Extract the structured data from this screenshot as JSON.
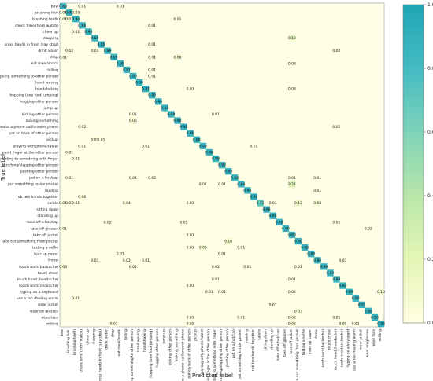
{
  "chart_data": {
    "type": "heatmap",
    "title": "",
    "xlabel": "Predicted label",
    "ylabel": "True label",
    "labels": [
      "bow",
      "brushing hair",
      "brushing teeth",
      "check time (from watch)",
      "cheer up",
      "clapping",
      "cross hands in front (say stop)",
      "drink water",
      "drop",
      "eat meal/snack",
      "falling",
      "giving something to other person",
      "hand waving",
      "handshaking",
      "hopping (one foot jumping)",
      "hugging other person",
      "jump up",
      "kicking other person",
      "kicking something",
      "make a phone call/answer phone",
      "pat on back of other person",
      "pickup",
      "playing with phone/tablet",
      "point finger at the other person",
      "pointing to something with finger",
      "punching/slapping other person",
      "pushing other person",
      "put on a hat/cap",
      "put something inside pocket",
      "reading",
      "rub two hands together",
      "salute",
      "sitting down",
      "standing up",
      "take off a hat/cap",
      "take off glasses",
      "take off jacket",
      "take out something from pocket",
      "tasting a selfie",
      "tear up paper",
      "throw",
      "touch back(backache)",
      "touch chest",
      "touch head (headache)",
      "touch neck(neckache)",
      "typing on a keyboard",
      "use a fan /feeling warm",
      "wear jacket",
      "wear on glasses",
      "wipe face",
      "writing"
    ],
    "cells": [
      [
        0,
        0,
        0.83
      ],
      [
        0,
        3,
        0.01
      ],
      [
        0,
        9,
        0.01
      ],
      [
        1,
        0,
        0.01
      ],
      [
        1,
        1,
        0.9
      ],
      [
        1,
        2,
        0.03
      ],
      [
        2,
        0,
        0.01
      ],
      [
        2,
        1,
        0.03
      ],
      [
        2,
        2,
        0.9
      ],
      [
        3,
        3,
        0.88
      ],
      [
        4,
        4,
        0.9
      ],
      [
        5,
        5,
        0.89
      ],
      [
        6,
        6,
        0.9
      ],
      [
        7,
        7,
        0.89
      ],
      [
        8,
        8,
        0.89
      ],
      [
        9,
        9,
        0.9
      ],
      [
        10,
        10,
        0.87
      ],
      [
        11,
        11,
        0.9
      ],
      [
        12,
        12,
        0.9
      ],
      [
        13,
        13,
        0.91
      ],
      [
        14,
        14,
        0.9
      ],
      [
        15,
        15,
        0.9
      ],
      [
        16,
        16,
        0.88
      ],
      [
        17,
        17,
        0.89
      ],
      [
        18,
        18,
        0.9
      ],
      [
        19,
        19,
        0.88
      ],
      [
        20,
        20,
        0.9
      ],
      [
        21,
        21,
        0.89
      ],
      [
        22,
        22,
        0.9
      ],
      [
        23,
        23,
        0.88
      ],
      [
        24,
        24,
        0.89
      ],
      [
        25,
        25,
        0.9
      ],
      [
        26,
        26,
        0.89
      ],
      [
        27,
        27,
        0.88
      ],
      [
        28,
        28,
        0.89
      ],
      [
        29,
        29,
        0.9
      ],
      [
        30,
        30,
        0.92
      ],
      [
        31,
        31,
        0.71
      ],
      [
        32,
        32,
        0.9
      ],
      [
        33,
        33,
        0.88
      ],
      [
        34,
        34,
        0.89
      ],
      [
        35,
        35,
        0.9
      ],
      [
        36,
        36,
        0.89
      ],
      [
        37,
        37,
        0.9
      ],
      [
        38,
        38,
        0.88
      ],
      [
        39,
        39,
        0.89
      ],
      [
        40,
        40,
        0.9
      ],
      [
        41,
        41,
        0.89
      ],
      [
        42,
        42,
        0.9
      ],
      [
        43,
        43,
        0.88
      ],
      [
        44,
        44,
        0.9
      ],
      [
        45,
        45,
        0.89
      ],
      [
        46,
        46,
        0.9
      ],
      [
        47,
        47,
        0.91
      ],
      [
        48,
        48,
        0.88
      ],
      [
        49,
        49,
        0.9
      ],
      [
        50,
        50,
        0.93
      ],
      [
        50,
        8,
        0.01
      ],
      [
        50,
        20,
        0.02
      ],
      [
        50,
        36,
        0.02
      ],
      [
        50,
        44,
        0.05
      ],
      [
        50,
        46,
        0.01
      ],
      [
        49,
        20,
        0.01
      ],
      [
        49,
        28,
        0.01
      ],
      [
        49,
        36,
        0.02
      ],
      [
        49,
        43,
        0.01
      ],
      [
        48,
        37,
        0.03
      ],
      [
        48,
        48,
        0.88
      ],
      [
        47,
        33,
        0.01
      ],
      [
        46,
        2,
        0.01
      ],
      [
        45,
        23,
        0.01
      ],
      [
        45,
        25,
        0.01
      ],
      [
        45,
        36,
        0.02
      ],
      [
        45,
        50,
        0.1
      ],
      [
        44,
        20,
        0.01
      ],
      [
        43,
        24,
        0.01
      ],
      [
        43,
        36,
        0.01
      ],
      [
        41,
        0,
        0.03
      ],
      [
        41,
        11,
        0.02
      ],
      [
        41,
        24,
        0.02
      ],
      [
        41,
        29,
        0.01
      ],
      [
        41,
        37,
        0.01
      ],
      [
        40,
        5,
        0.01
      ],
      [
        40,
        10,
        0.02
      ],
      [
        40,
        13,
        0.01
      ],
      [
        40,
        44,
        0.01
      ],
      [
        39,
        9,
        0.01
      ],
      [
        39,
        25,
        0.01
      ],
      [
        38,
        20,
        0.01
      ],
      [
        38,
        22,
        0.06
      ],
      [
        38,
        28,
        0.01
      ],
      [
        37,
        26,
        0.1
      ],
      [
        36,
        20,
        0.01
      ],
      [
        35,
        0,
        0.01
      ],
      [
        35,
        48,
        0.02
      ],
      [
        34,
        7,
        0.02
      ],
      [
        34,
        19,
        0.01
      ],
      [
        34,
        43,
        0.01
      ],
      [
        31,
        0,
        0.01
      ],
      [
        31,
        1,
        0.01
      ],
      [
        31,
        2,
        0.01
      ],
      [
        31,
        10,
        0.04
      ],
      [
        31,
        20,
        0.01
      ],
      [
        31,
        33,
        0.01
      ],
      [
        31,
        37,
        0.13
      ],
      [
        31,
        40,
        0.08
      ],
      [
        30,
        3,
        0.06
      ],
      [
        29,
        40,
        0.01
      ],
      [
        28,
        22,
        0.01
      ],
      [
        28,
        25,
        0.01
      ],
      [
        28,
        36,
        0.24
      ],
      [
        27,
        1,
        0.01
      ],
      [
        27,
        11,
        0.01
      ],
      [
        27,
        14,
        0.02
      ],
      [
        27,
        36,
        0.01
      ],
      [
        27,
        40,
        0.01
      ],
      [
        24,
        2,
        0.01
      ],
      [
        23,
        1,
        0.01
      ],
      [
        22,
        3,
        0.01
      ],
      [
        22,
        13,
        0.01
      ],
      [
        22,
        30,
        0.01
      ],
      [
        21,
        5,
        0.01
      ],
      [
        21,
        6,
        0.01
      ],
      [
        19,
        3,
        0.02
      ],
      [
        19,
        43,
        0.01
      ],
      [
        18,
        11,
        0.06
      ],
      [
        17,
        11,
        0.01
      ],
      [
        17,
        24,
        0.01
      ],
      [
        13,
        36,
        0.03
      ],
      [
        13,
        20,
        0.03
      ],
      [
        11,
        14,
        0.01
      ],
      [
        10,
        14,
        0.01
      ],
      [
        9,
        36,
        0.03
      ],
      [
        8,
        0,
        0.01
      ],
      [
        8,
        14,
        0.01
      ],
      [
        8,
        18,
        0.08
      ],
      [
        7,
        1,
        0.02
      ],
      [
        7,
        5,
        0.01
      ],
      [
        7,
        43,
        0.02
      ],
      [
        6,
        14,
        0.01
      ],
      [
        5,
        36,
        0.13
      ],
      [
        4,
        2,
        0.01
      ],
      [
        3,
        14,
        0.01
      ],
      [
        2,
        18,
        0.01
      ]
    ],
    "colorbar": {
      "min": 0,
      "max": 1,
      "ticks": [
        "0.0",
        "0.2",
        "0.4",
        "0.6",
        "0.8",
        "1.0"
      ],
      "colors": [
        "#ffffcc",
        "#d9f0a3",
        "#addd8e",
        "#78c679",
        "#41ab5d",
        "#238443"
      ]
    },
    "grid": false,
    "note": "Matrix shown for 40+ classes; annotations only on visible nonzero cells."
  }
}
